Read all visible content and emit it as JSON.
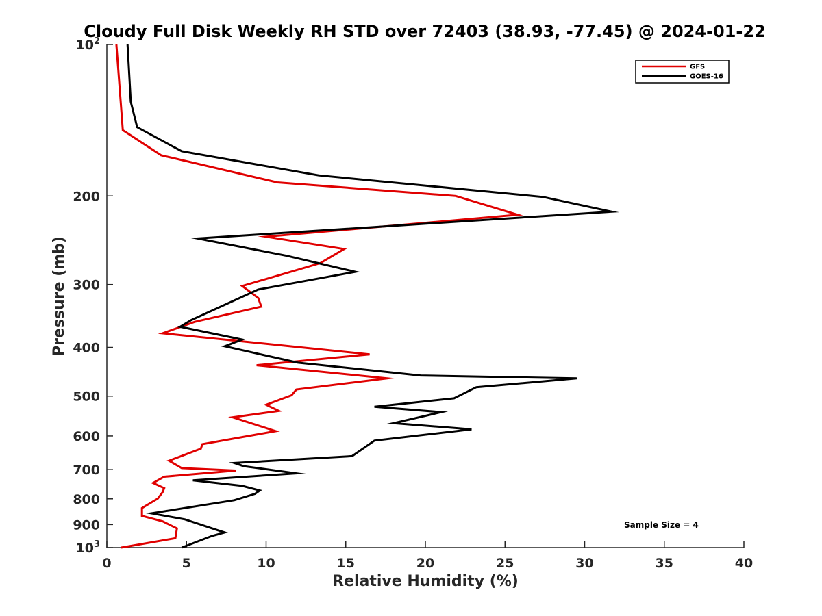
{
  "chart_data": {
    "type": "line",
    "title": "Cloudy Full Disk Weekly RH STD over 72403 (38.93, -77.45) @ 2024-01-22",
    "xlabel": "Relative Humidity (%)",
    "ylabel": "Pressure (mb)",
    "xlim": [
      0,
      40
    ],
    "ylim": [
      100,
      1000
    ],
    "y_scale": "log",
    "y_reversed": true,
    "grid": false,
    "legend_position": "top-right",
    "x_ticks": [
      "0",
      "5",
      "10",
      "15",
      "20",
      "25",
      "30",
      "35",
      "40"
    ],
    "y_ticks": [
      {
        "value": 100,
        "base": "10",
        "exp": "2"
      },
      {
        "value": 200,
        "label": "200"
      },
      {
        "value": 300,
        "label": "300"
      },
      {
        "value": 400,
        "label": "400"
      },
      {
        "value": 500,
        "label": "500"
      },
      {
        "value": 600,
        "label": "600"
      },
      {
        "value": 700,
        "label": "700"
      },
      {
        "value": 800,
        "label": "800"
      },
      {
        "value": 900,
        "label": "900"
      },
      {
        "value": 1000,
        "base": "10",
        "exp": "3"
      }
    ],
    "annotation": "Sample Size = 4",
    "series": [
      {
        "name": "GFS",
        "color": "#e00000",
        "x": [
          0.6,
          1.0,
          3.4,
          10.7,
          21.9,
          25.8,
          10.0,
          14.9,
          13.4,
          8.5,
          9.5,
          9.7,
          5.5,
          3.5,
          16.5,
          9.4,
          17.6,
          11.9,
          11.6,
          10.0,
          10.8,
          7.9,
          10.6,
          6.0,
          5.9,
          3.9,
          4.7,
          8.1,
          3.6,
          2.9,
          3.6,
          3.5,
          3.2,
          2.2,
          2.2,
          3.5,
          4.4,
          4.3,
          0.9
        ],
        "y": [
          100,
          148,
          166,
          188,
          200,
          218,
          241,
          255,
          272,
          302,
          319,
          332,
          356,
          375,
          413,
          434,
          461,
          485,
          498,
          520,
          535,
          551,
          587,
          623,
          636,
          672,
          695,
          703,
          723,
          744,
          762,
          776,
          799,
          835,
          865,
          887,
          916,
          958,
          1000
        ]
      },
      {
        "name": "GOES-16",
        "color": "#000000",
        "x": [
          1.3,
          1.5,
          1.9,
          4.7,
          13.3,
          27.4,
          31.7,
          5.7,
          11.3,
          15.6,
          9.5,
          5.3,
          4.6,
          8.5,
          7.4,
          12.0,
          19.7,
          29.5,
          23.2,
          21.8,
          16.8,
          21.0,
          18.0,
          22.9,
          16.8,
          15.4,
          8.0,
          8.6,
          11.9,
          5.4,
          8.5,
          9.6,
          9.3,
          8.0,
          2.8,
          4.9,
          6.8,
          7.4,
          6.6,
          4.7
        ],
        "y": [
          100,
          130,
          146,
          163,
          182,
          201,
          215,
          243,
          263,
          283,
          307,
          353,
          364,
          386,
          398,
          429,
          455,
          461,
          480,
          505,
          525,
          538,
          566,
          582,
          613,
          658,
          679,
          689,
          712,
          735,
          754,
          770,
          782,
          805,
          855,
          879,
          920,
          933,
          948,
          1000
        ]
      }
    ]
  }
}
